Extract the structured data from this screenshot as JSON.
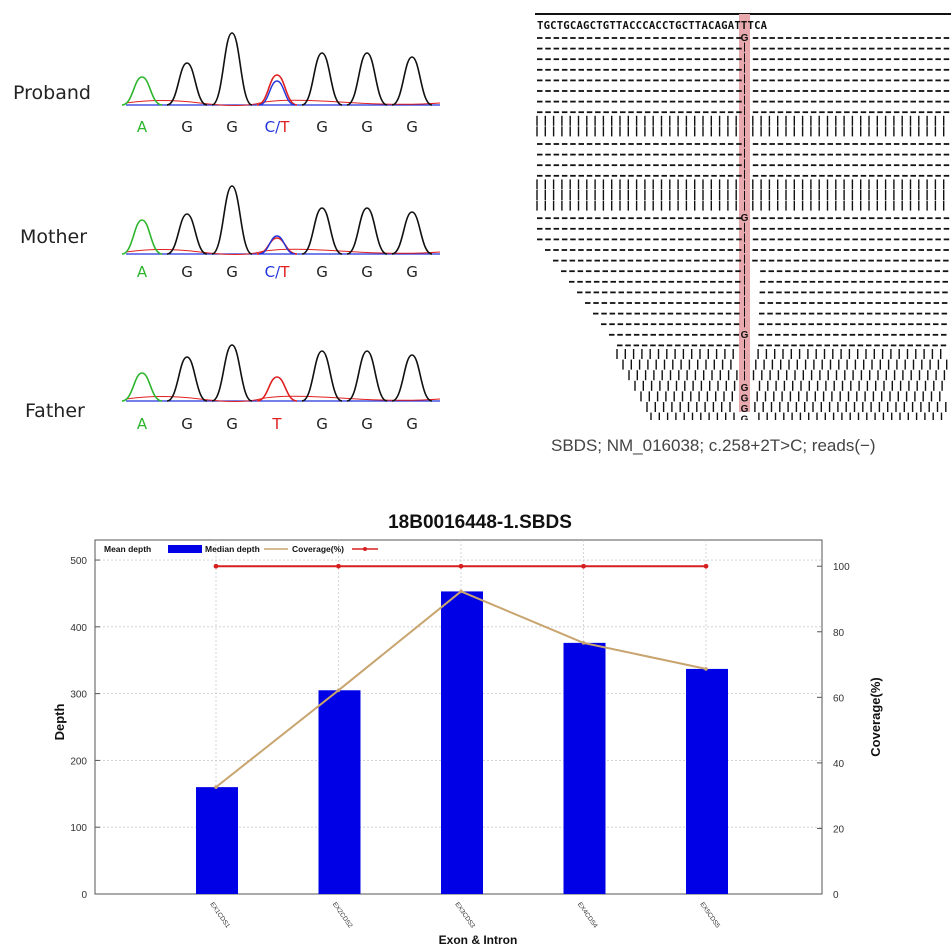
{
  "chromatograms": {
    "samples": [
      {
        "label": "Proband",
        "bases": [
          {
            "t": "A",
            "c": "#2db52d"
          },
          {
            "t": "G",
            "c": "#222222"
          },
          {
            "t": "G",
            "c": "#222222"
          },
          {
            "t": "C/T",
            "c": "split"
          },
          {
            "t": "G",
            "c": "#222222"
          },
          {
            "t": "G",
            "c": "#222222"
          },
          {
            "t": "G",
            "c": "#222222"
          }
        ]
      },
      {
        "label": "Mother",
        "bases": [
          {
            "t": "A",
            "c": "#2db52d"
          },
          {
            "t": "G",
            "c": "#222222"
          },
          {
            "t": "G",
            "c": "#222222"
          },
          {
            "t": "C/T",
            "c": "split"
          },
          {
            "t": "G",
            "c": "#222222"
          },
          {
            "t": "G",
            "c": "#222222"
          },
          {
            "t": "G",
            "c": "#222222"
          }
        ]
      },
      {
        "label": "Father",
        "bases": [
          {
            "t": "A",
            "c": "#2db52d"
          },
          {
            "t": "G",
            "c": "#222222"
          },
          {
            "t": "G",
            "c": "#222222"
          },
          {
            "t": "T",
            "c": "#e02020"
          },
          {
            "t": "G",
            "c": "#222222"
          },
          {
            "t": "G",
            "c": "#222222"
          },
          {
            "t": "G",
            "c": "#222222"
          }
        ]
      }
    ],
    "colors": {
      "A": "#2db52d",
      "G": "#111111",
      "C": "#2233dd",
      "T": "#e02020"
    }
  },
  "reads_view": {
    "reference": "TGCTGCAGCTGTTACCCACCTGCTTACAGATTTCA",
    "caption": "SBDS; NM_016038; c.258+2T>C; reads(−)",
    "highlight_color": "#e8a9ae",
    "variant_base": "G"
  },
  "chart_data": {
    "type": "bar",
    "title": "18B0016448-1.SBDS",
    "xlabel": "Exon & Intron",
    "ylabel": "Depth",
    "y2label": "Coverage(%)",
    "categories": [
      "EX1CDS1",
      "EX2CDS2",
      "EX3CDS3",
      "EX4CDS4",
      "EX5CDS5"
    ],
    "series": [
      {
        "name": "Median depth",
        "type": "bar",
        "axis": "left",
        "color": "#0000e6",
        "values": [
          160,
          305,
          453,
          376,
          337
        ]
      },
      {
        "name": "Mean depth",
        "type": "line",
        "axis": "left",
        "color": "#c8a46e",
        "values": [
          160,
          305,
          453,
          376,
          337
        ]
      },
      {
        "name": "Coverage(%)",
        "type": "line",
        "axis": "right",
        "color": "#d62020",
        "values": [
          100,
          100,
          100,
          100,
          100
        ]
      }
    ],
    "ylim": [
      0,
      530
    ],
    "y2lim": [
      0,
      108
    ],
    "yticks": [
      0,
      100,
      200,
      300,
      400,
      500
    ],
    "y2ticks": [
      0,
      20,
      40,
      60,
      80,
      100
    ],
    "grid": true,
    "legend": "top-left"
  }
}
